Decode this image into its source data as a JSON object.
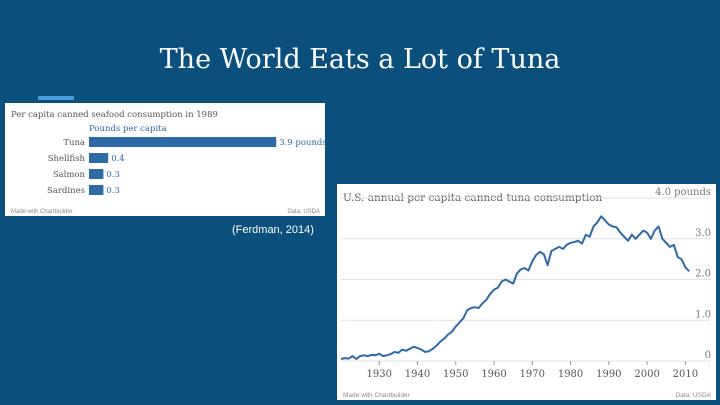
{
  "slide": {
    "title": "The World Eats a Lot of Tuna",
    "caption": "(Ferdman, 2014)"
  },
  "chart_data": [
    {
      "type": "bar",
      "orientation": "horizontal",
      "title": "Per capita canned seafood consumption in 1989",
      "subtitle": "Pounds per capita",
      "categories": [
        "Tuna",
        "Shellfish",
        "Salmon",
        "Sardines"
      ],
      "values": [
        3.9,
        0.4,
        0.3,
        0.3
      ],
      "value_labels": [
        "3.9 pounds",
        "0.4",
        "0.3",
        "0.3"
      ],
      "xlim": [
        0,
        4.5
      ],
      "bar_color": "#2e6aa6",
      "footer_left": "Made with Chartbuilder",
      "footer_right": "Data: USDA"
    },
    {
      "type": "line",
      "title": "U.S. annual per capita canned tuna consumption",
      "y_top_label": "4.0 pounds",
      "yticks": [
        0,
        1.0,
        2.0,
        3.0,
        4.0
      ],
      "ytick_labels": [
        "0",
        "1.0",
        "2.0",
        "3.0",
        "4.0 pounds"
      ],
      "ylim": [
        0,
        4.0
      ],
      "xlim": [
        1920,
        2012
      ],
      "xticks": [
        1930,
        1940,
        1950,
        1960,
        1970,
        1980,
        1990,
        2000,
        2010
      ],
      "line_color": "#2e6aa6",
      "x": [
        1920,
        1921,
        1922,
        1923,
        1924,
        1925,
        1926,
        1927,
        1928,
        1929,
        1930,
        1931,
        1932,
        1933,
        1934,
        1935,
        1936,
        1937,
        1938,
        1939,
        1940,
        1941,
        1942,
        1943,
        1944,
        1945,
        1946,
        1947,
        1948,
        1949,
        1950,
        1951,
        1952,
        1953,
        1954,
        1955,
        1956,
        1957,
        1958,
        1959,
        1960,
        1961,
        1962,
        1963,
        1964,
        1965,
        1966,
        1967,
        1968,
        1969,
        1970,
        1971,
        1972,
        1973,
        1974,
        1975,
        1976,
        1977,
        1978,
        1979,
        1980,
        1981,
        1982,
        1983,
        1984,
        1985,
        1986,
        1987,
        1988,
        1989,
        1990,
        1991,
        1992,
        1993,
        1994,
        1995,
        1996,
        1997,
        1998,
        1999,
        2000,
        2001,
        2002,
        2003,
        2004,
        2005,
        2006,
        2007,
        2008,
        2009,
        2010,
        2011
      ],
      "y": [
        0.05,
        0.07,
        0.06,
        0.12,
        0.05,
        0.12,
        0.14,
        0.12,
        0.15,
        0.14,
        0.18,
        0.12,
        0.14,
        0.17,
        0.22,
        0.2,
        0.28,
        0.25,
        0.3,
        0.35,
        0.32,
        0.28,
        0.22,
        0.24,
        0.3,
        0.38,
        0.48,
        0.55,
        0.65,
        0.72,
        0.85,
        0.95,
        1.05,
        1.25,
        1.3,
        1.32,
        1.3,
        1.42,
        1.5,
        1.65,
        1.75,
        1.8,
        1.95,
        2.0,
        1.95,
        1.9,
        2.15,
        2.25,
        2.28,
        2.22,
        2.45,
        2.6,
        2.68,
        2.62,
        2.35,
        2.7,
        2.75,
        2.8,
        2.75,
        2.85,
        2.9,
        2.92,
        2.95,
        2.88,
        3.1,
        3.05,
        3.3,
        3.4,
        3.55,
        3.45,
        3.35,
        3.3,
        3.28,
        3.15,
        3.05,
        2.95,
        3.1,
        3.0,
        3.1,
        3.2,
        3.15,
        3.0,
        3.2,
        3.3,
        3.0,
        2.9,
        2.8,
        2.85,
        2.55,
        2.5,
        2.3,
        2.2
      ],
      "footer_left": "Made with Chartbuilder",
      "footer_right": "Data: USDA"
    }
  ]
}
